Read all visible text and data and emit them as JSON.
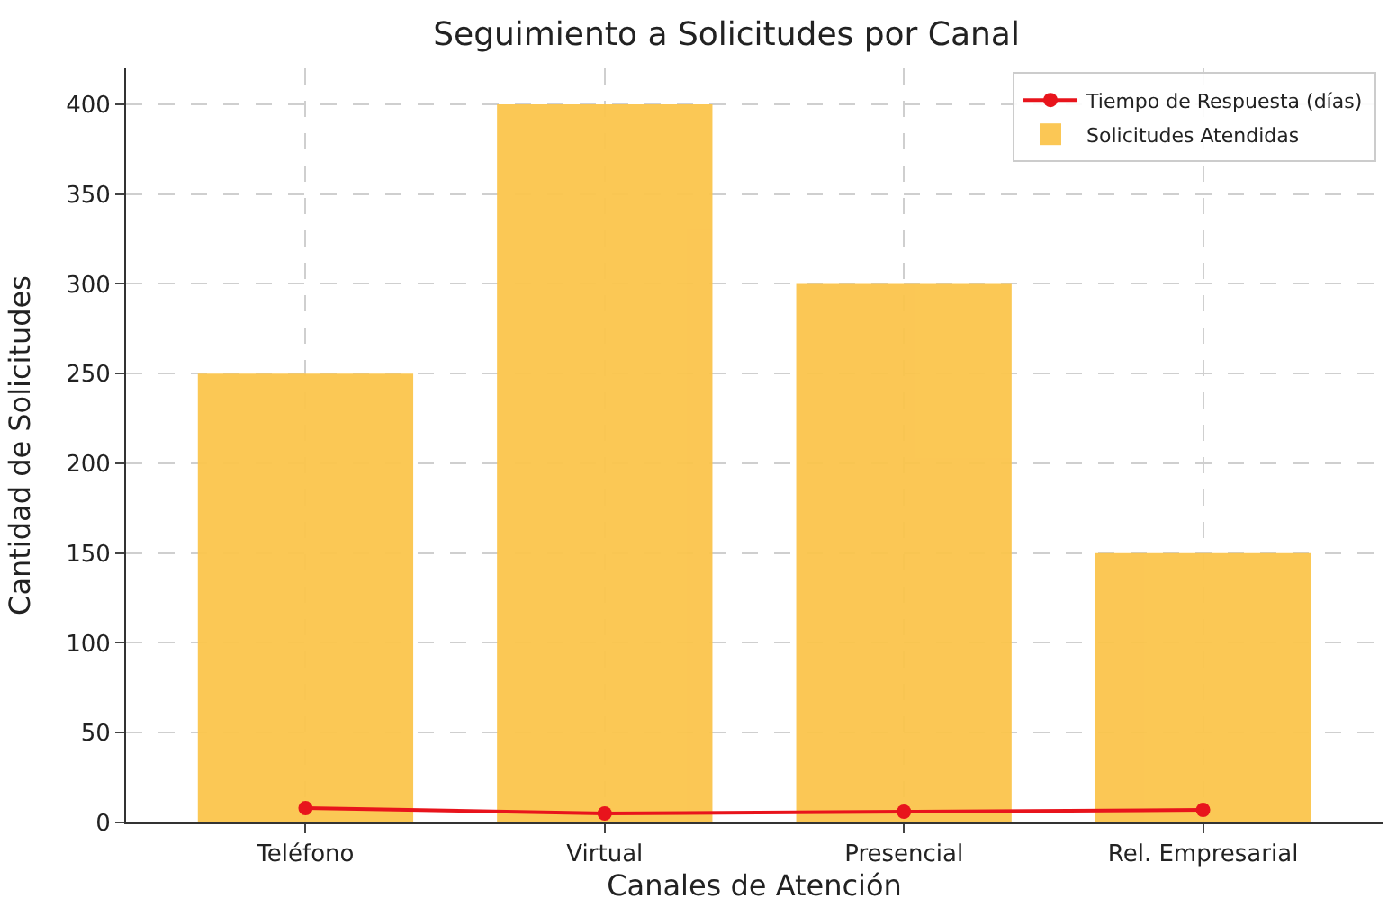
{
  "chart_data": {
    "type": "bar",
    "title": "Seguimiento a Solicitudes por Canal",
    "xlabel": "Canales de Atención",
    "ylabel": "Cantidad de Solicitudes",
    "categories": [
      "Teléfono",
      "Virtual",
      "Presencial",
      "Rel. Empresarial"
    ],
    "series": [
      {
        "name": "Solicitudes Atendidas",
        "color": "#fbc54c",
        "values": [
          250,
          400,
          300,
          150
        ]
      },
      {
        "name": "Tiempo de Respuesta (días)",
        "type": "line",
        "color": "#e8141c",
        "values": [
          8,
          5,
          6,
          7
        ],
        "marker": "circle",
        "line_style": "solid"
      }
    ],
    "ylim": [
      0,
      420
    ],
    "yticks": [
      0,
      50,
      100,
      150,
      200,
      250,
      300,
      350,
      400
    ],
    "grid": true,
    "legend": "top right"
  }
}
